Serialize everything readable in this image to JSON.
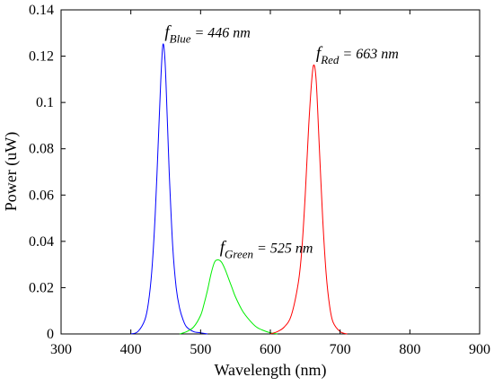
{
  "chart_data": {
    "type": "line",
    "xlabel": "Wavelength (nm)",
    "ylabel": "Power (uW)",
    "xlim": [
      300,
      900
    ],
    "ylim": [
      0,
      0.14
    ],
    "xticks": [
      300,
      400,
      500,
      600,
      700,
      800,
      900
    ],
    "yticks": [
      0,
      0.02,
      0.04,
      0.06,
      0.08,
      0.1,
      0.12,
      0.14
    ],
    "ytick_labels": [
      "0",
      "0.02",
      "0.04",
      "0.06",
      "0.08",
      "0.1",
      "0.12",
      "0.14"
    ],
    "grid": false,
    "series": [
      {
        "color": "#0000ff",
        "x": [
          400,
          410,
          420,
          425,
          430,
          435,
          440,
          443,
          446,
          449,
          452,
          455,
          460,
          465,
          470,
          475,
          480,
          490,
          500,
          510
        ],
        "y": [
          0,
          0.001,
          0.006,
          0.013,
          0.027,
          0.052,
          0.088,
          0.11,
          0.125,
          0.118,
          0.095,
          0.07,
          0.038,
          0.02,
          0.011,
          0.006,
          0.003,
          0.001,
          0.0005,
          0
        ]
      },
      {
        "color": "#00ee00",
        "x": [
          470,
          480,
          490,
          500,
          505,
          510,
          515,
          520,
          525,
          530,
          535,
          540,
          545,
          550,
          560,
          570,
          580,
          590,
          600,
          610
        ],
        "y": [
          0,
          0.001,
          0.003,
          0.008,
          0.013,
          0.019,
          0.026,
          0.031,
          0.032,
          0.031,
          0.028,
          0.024,
          0.02,
          0.016,
          0.01,
          0.006,
          0.003,
          0.0015,
          0.0005,
          0
        ]
      },
      {
        "color": "#ff0000",
        "x": [
          600,
          610,
          620,
          630,
          640,
          645,
          650,
          655,
          660,
          663,
          666,
          670,
          675,
          680,
          685,
          690,
          700,
          710
        ],
        "y": [
          0,
          0.001,
          0.003,
          0.008,
          0.022,
          0.036,
          0.06,
          0.09,
          0.112,
          0.116,
          0.108,
          0.082,
          0.05,
          0.026,
          0.012,
          0.005,
          0.001,
          0
        ]
      }
    ],
    "annotations": [
      {
        "var": "f",
        "sub": "Blue",
        "text": " = 446 nm",
        "x": 446,
        "y": 0.125
      },
      {
        "var": "f",
        "sub": "Red",
        "text": " = 663 nm",
        "x": 663,
        "y": 0.116
      },
      {
        "var": "f",
        "sub": "Green",
        "text": " = 525 nm",
        "x": 525,
        "y": 0.032
      }
    ]
  }
}
